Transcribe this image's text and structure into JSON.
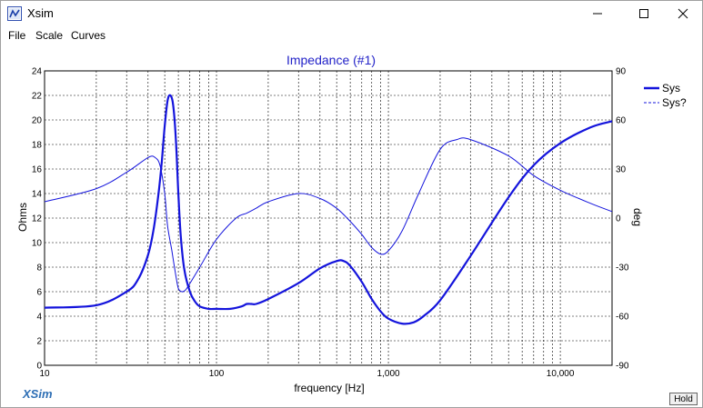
{
  "window": {
    "title": "Xsim",
    "app_icon": "xsim-app-icon"
  },
  "menu": {
    "items": [
      "File",
      "Scale",
      "Curves"
    ]
  },
  "hold_label": "Hold",
  "chart_data": {
    "type": "line",
    "title": "Impedance (#1)",
    "xlabel": "frequency [Hz]",
    "ylabel": "Ohms",
    "y2label": "deg",
    "xscale": "log",
    "xlim": [
      10,
      20000
    ],
    "ylim": [
      0,
      24
    ],
    "y2lim": [
      -90,
      90
    ],
    "xticks": [
      10,
      100,
      1000,
      10000
    ],
    "xtick_labels": [
      "10",
      "100",
      "1,000",
      "10,000"
    ],
    "yticks": [
      0,
      2,
      4,
      6,
      8,
      10,
      12,
      14,
      16,
      18,
      20,
      22,
      24
    ],
    "y2ticks": [
      -90,
      -60,
      -30,
      0,
      30,
      60,
      90
    ],
    "grid": true,
    "legend_position": "top-right",
    "watermark": "XSim",
    "colors": {
      "series": "#1414dc",
      "title": "#2323c8",
      "watermark": "#2e6fb5"
    },
    "series": [
      {
        "name": "Sys",
        "axis": "left",
        "quantity": "impedance",
        "x": [
          10,
          20,
          30,
          35,
          40,
          43,
          46,
          48,
          50,
          52,
          54,
          56,
          58,
          60,
          62,
          65,
          70,
          75,
          80,
          90,
          100,
          120,
          140,
          150,
          160,
          170,
          200,
          300,
          400,
          500,
          550,
          600,
          700,
          800,
          900,
          1000,
          1200,
          1400,
          1600,
          2000,
          3000,
          5000,
          7000,
          10000,
          15000,
          20000
        ],
        "y": [
          4.7,
          4.9,
          6.0,
          7.0,
          9.0,
          11.0,
          14.0,
          16.5,
          19.5,
          21.6,
          22.0,
          21.2,
          18.5,
          14.0,
          10.5,
          7.8,
          6.0,
          5.2,
          4.8,
          4.6,
          4.6,
          4.6,
          4.8,
          5.0,
          5.0,
          5.0,
          5.4,
          6.7,
          7.9,
          8.5,
          8.5,
          8.1,
          6.8,
          5.4,
          4.4,
          3.8,
          3.4,
          3.5,
          4.0,
          5.3,
          8.9,
          13.7,
          16.3,
          18.1,
          19.4,
          19.9
        ]
      },
      {
        "name": "Sys?",
        "axis": "right",
        "quantity": "phase",
        "x": [
          10,
          20,
          30,
          40,
          44,
          47,
          50,
          52,
          55,
          58,
          60,
          63,
          66,
          70,
          80,
          100,
          130,
          150,
          170,
          200,
          300,
          400,
          500,
          600,
          700,
          800,
          900,
          1000,
          1200,
          1500,
          2000,
          2500,
          3000,
          5000,
          7000,
          10000,
          15000,
          20000
        ],
        "y": [
          10,
          18,
          28,
          37,
          37,
          32,
          15,
          -5,
          -20,
          -35,
          -43,
          -45,
          -44,
          -40,
          -30,
          -13,
          0,
          3,
          6,
          10,
          15,
          12,
          6,
          -2,
          -10,
          -18,
          -22,
          -20,
          -8,
          15,
          42,
          48,
          48,
          38,
          26,
          17,
          9,
          4
        ]
      }
    ]
  }
}
